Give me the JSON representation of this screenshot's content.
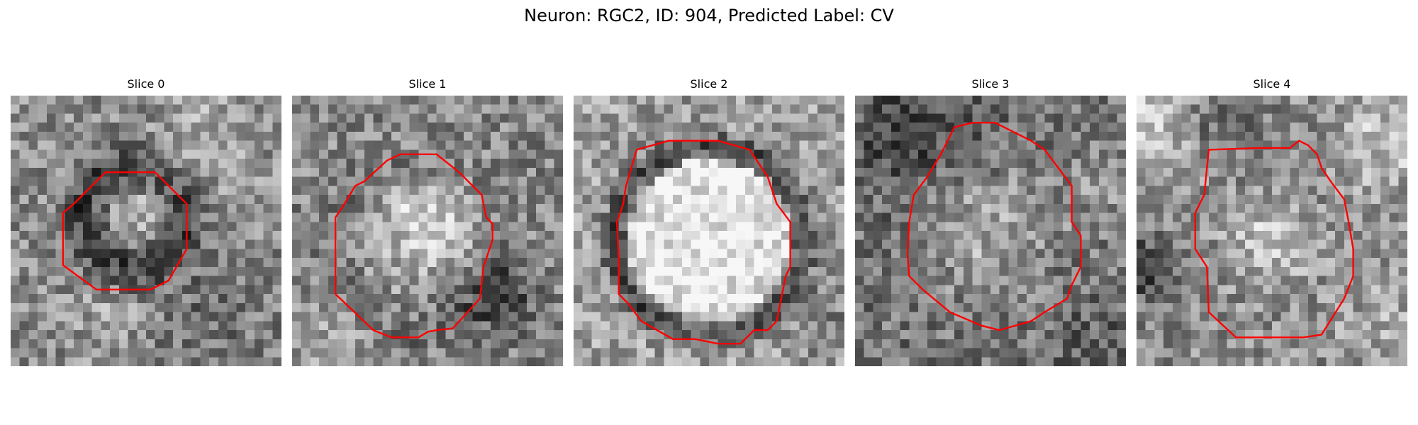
{
  "figure": {
    "title": "Neuron: RGC2, ID: 904, Predicted Label: CV"
  },
  "colors": {
    "contour": "#ff0000",
    "background": "#ffffff",
    "colormap": "grayscale"
  },
  "panels": [
    {
      "title": "Slice 0"
    },
    {
      "title": "Slice 1"
    },
    {
      "title": "Slice 2"
    },
    {
      "title": "Slice 3"
    },
    {
      "title": "Slice 4"
    }
  ]
}
